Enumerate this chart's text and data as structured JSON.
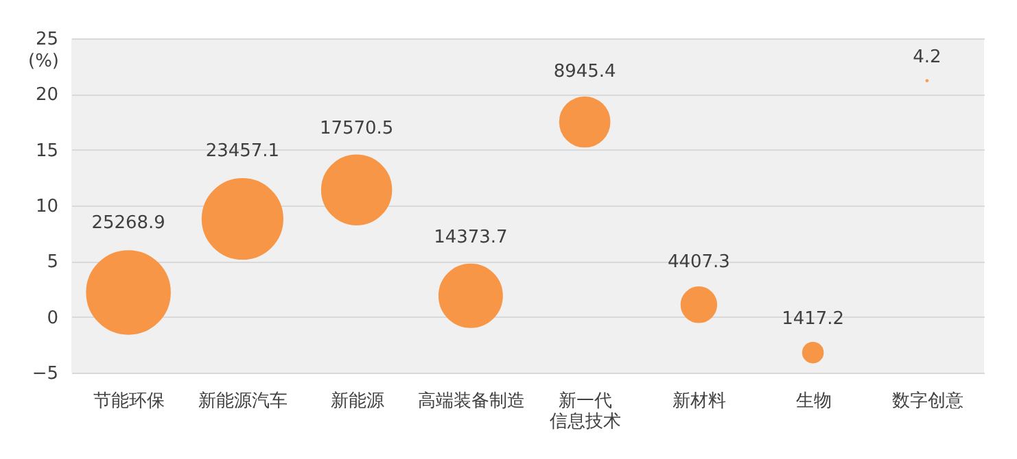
{
  "chart_data": {
    "type": "bubble",
    "ylabel": "(%)",
    "categories": [
      "节能环保",
      "新能源汽车",
      "新能源",
      "高端装备制造",
      "新一代信息技术",
      "新材料",
      "生物",
      "数字创意"
    ],
    "series": [
      {
        "color": "#f79646",
        "values": [
          2.2,
          8.8,
          11.4,
          1.9,
          17.5,
          1.1,
          -3.2,
          21.2
        ],
        "sizes": [
          25268.9,
          23457.1,
          17570.5,
          14373.7,
          8945.4,
          4407.3,
          1417.2,
          4.2
        ],
        "value_labels": [
          "25268.9",
          "23457.1",
          "17570.5",
          "14373.7",
          "8945.4",
          "4407.3",
          "1417.2",
          "4.2"
        ]
      }
    ],
    "ylim": [
      -5,
      25
    ],
    "yticks": [
      -5,
      0,
      5,
      10,
      15,
      20,
      25
    ],
    "grid": "y",
    "legend": false
  }
}
